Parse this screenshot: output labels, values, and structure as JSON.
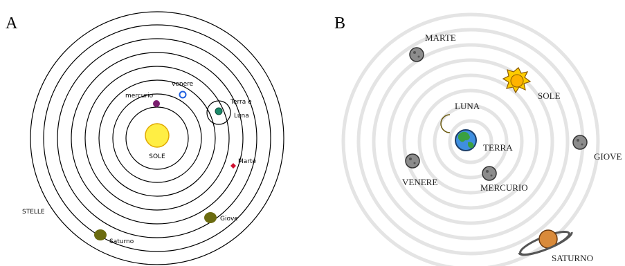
{
  "panels": {
    "a": {
      "letter": "A"
    },
    "b": {
      "letter": "B"
    }
  },
  "diagram_a": {
    "labels": {
      "sun": "SOLE",
      "mercury": "mercurio",
      "venus": "venere",
      "earth_line1": "Terra e",
      "earth_line2": "Luna",
      "mars": "Marte",
      "jupiter": "Giove",
      "saturn": "Saturno",
      "stars": "STELLE"
    },
    "colors": {
      "sun": "#ffee44",
      "sun_stroke": "#e0a800",
      "mercury": "#7a1e6e",
      "venus": "#1e5fe0",
      "earth": "#1a8a6a",
      "mars": "#d01030",
      "jupiter": "#6b6b10",
      "saturn": "#6b6b10"
    }
  },
  "diagram_b": {
    "labels": {
      "mars": "MARTE",
      "sun": "SOLE",
      "moon": "LUNA",
      "earth": "TERRA",
      "jupiter": "GIOVE",
      "venus": "VENERE",
      "mercury": "MERCURIO",
      "saturn": "SATURNO"
    },
    "colors": {
      "orbit": "#e4e4e4",
      "planet_grey": "#8c8c8c",
      "sun": "#ffcc00",
      "moon": "#f2e58a",
      "earth_ocean": "#3f8fe0",
      "earth_land": "#3aa040",
      "saturn": "#d98a3a"
    }
  }
}
